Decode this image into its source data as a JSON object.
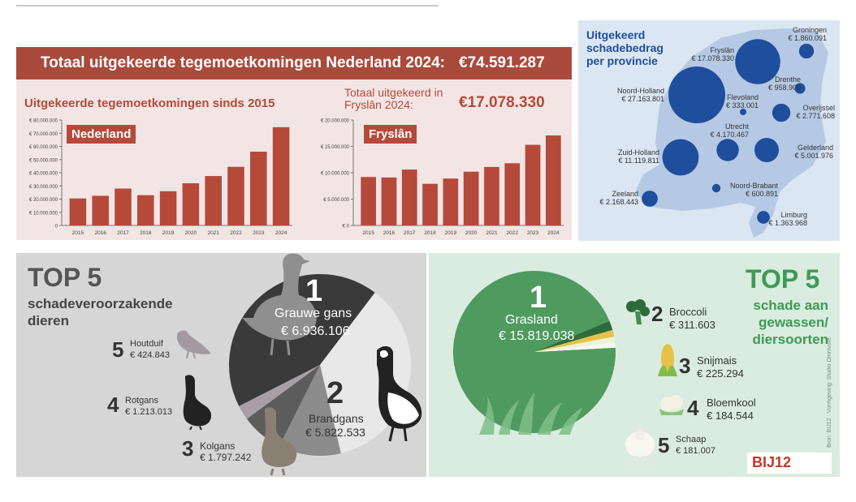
{
  "header": {
    "title": "Totaal uitgekeerde tegemoetkomingen Nederland 2024:",
    "total": "€74.591.287"
  },
  "nl_chart": {
    "title": "Uitgekeerde tegemoetkomingen sinds 2015",
    "tag": "Nederland"
  },
  "fr_chart": {
    "title_line1": "Totaal uitgekeerd in",
    "title_line2": "Fryslân 2024:",
    "total": "€17.078.330",
    "tag": "Fryslân"
  },
  "chart_data": [
    {
      "type": "bar",
      "categories": [
        "2015",
        "2016",
        "2017",
        "2018",
        "2019",
        "2020",
        "2021",
        "2022",
        "2023",
        "2024"
      ],
      "values": [
        20500000,
        22500000,
        28000000,
        23000000,
        26000000,
        32000000,
        37500000,
        44500000,
        56000000,
        74591287
      ],
      "ylim": [
        0,
        80000000
      ],
      "yticks": [
        "0",
        "€ 10.000.000",
        "€ 20.000.000",
        "€ 30.000.000",
        "€ 40.000.000",
        "€ 50.000.000",
        "€ 60.000.000",
        "€ 70.000.000",
        "€ 80.000.000"
      ],
      "grid": false,
      "color": "#b54a3b"
    },
    {
      "type": "bar",
      "categories": [
        "2015",
        "2016",
        "2017",
        "2018",
        "2019",
        "2020",
        "2021",
        "2022",
        "2023",
        "2024"
      ],
      "values": [
        9200000,
        9100000,
        10600000,
        7900000,
        8900000,
        10200000,
        11100000,
        11800000,
        15300000,
        17078330
      ],
      "ylim": [
        0,
        20000000
      ],
      "yticks": [
        "€ 0",
        "€ 5.000.000",
        "€ 10.000.000",
        "€ 15.000.000",
        "€ 20.000.000"
      ],
      "grid": false,
      "color": "#b54a3b"
    },
    {
      "type": "pie",
      "categories": [
        "Grauwe gans",
        "Brandgans",
        "Kolgans",
        "Rotgans",
        "Houtduif"
      ],
      "values": [
        6936106,
        5822533,
        1797242,
        1213013,
        424843
      ],
      "colors": [
        "#3a3a3a",
        "#e8e8e8",
        "#8c8c8c",
        "#5c5c5c",
        "#a89fa5"
      ]
    },
    {
      "type": "pie",
      "categories": [
        "Grasland",
        "Broccoli",
        "Snijmais",
        "Bloemkool",
        "Schaap"
      ],
      "values": [
        15819038,
        311603,
        225294,
        184544,
        181007
      ],
      "colors": [
        "#4f9a5f",
        "#2d6b3a",
        "#e5c24a",
        "#eef3d8",
        "#f7f7ee"
      ]
    }
  ],
  "map": {
    "title_line1": "Uitgekeerd",
    "title_line2": "schadebedrag",
    "title_line3": "per provincie",
    "provinces": [
      {
        "name": "Groningen",
        "amount": "€ 1.860.091",
        "value": 1860091
      },
      {
        "name": "Fryslân",
        "amount": "€ 17.078.330",
        "value": 17078330
      },
      {
        "name": "Drenthe",
        "amount": "€ 958.900",
        "value": 958900
      },
      {
        "name": "Noord-Holland",
        "amount": "€ 27.163.801",
        "value": 27163801
      },
      {
        "name": "Flevoland",
        "amount": "€ 333.001",
        "value": 333001
      },
      {
        "name": "Overijssel",
        "amount": "€ 2.771.608",
        "value": 2771608
      },
      {
        "name": "Utrecht",
        "amount": "€ 4.170.467",
        "value": 4170467
      },
      {
        "name": "Zuid-Holland",
        "amount": "€ 11.119.811",
        "value": 11119811
      },
      {
        "name": "Gelderland",
        "amount": "€ 5.001.976",
        "value": 5001976
      },
      {
        "name": "Zeeland",
        "amount": "€ 2.168.443",
        "value": 2168443
      },
      {
        "name": "Noord-Brabant",
        "amount": "€ 600.891",
        "value": 600891
      },
      {
        "name": "Limburg",
        "amount": "€ 1.363.968",
        "value": 1363968
      }
    ],
    "bubble_color": "#1f4e9c",
    "land_color": "#b6c9e4"
  },
  "animals": {
    "heading": "TOP 5",
    "subheading_line1": "schadeveroorzakende",
    "subheading_line2": "dieren",
    "items": [
      {
        "rank": "1",
        "name": "Grauwe gans",
        "amount": "€ 6.936.106"
      },
      {
        "rank": "2",
        "name": "Brandgans",
        "amount": "€ 5.822.533"
      },
      {
        "rank": "3",
        "name": "Kolgans",
        "amount": "€ 1.797.242"
      },
      {
        "rank": "4",
        "name": "Rotgans",
        "amount": "€ 1.213.013"
      },
      {
        "rank": "5",
        "name": "Houtduif",
        "amount": "€ 424.843"
      }
    ]
  },
  "crops": {
    "heading": "TOP 5",
    "subheading_line1": "schade aan",
    "subheading_line2": "gewassen/",
    "subheading_line3": "diersoorten",
    "items": [
      {
        "rank": "1",
        "name": "Grasland",
        "amount": "€ 15.819.038"
      },
      {
        "rank": "2",
        "name": "Broccoli",
        "amount": "€ 311.603"
      },
      {
        "rank": "3",
        "name": "Snijmais",
        "amount": "€ 225.294"
      },
      {
        "rank": "4",
        "name": "Bloemkool",
        "amount": "€ 184.544"
      },
      {
        "rank": "5",
        "name": "Schaap",
        "amount": "€ 181.007"
      }
    ]
  },
  "footer": {
    "logo": "BIJ12",
    "credit": "Bron: BIJ12 · Vormgeving: Studio Omnivore"
  }
}
